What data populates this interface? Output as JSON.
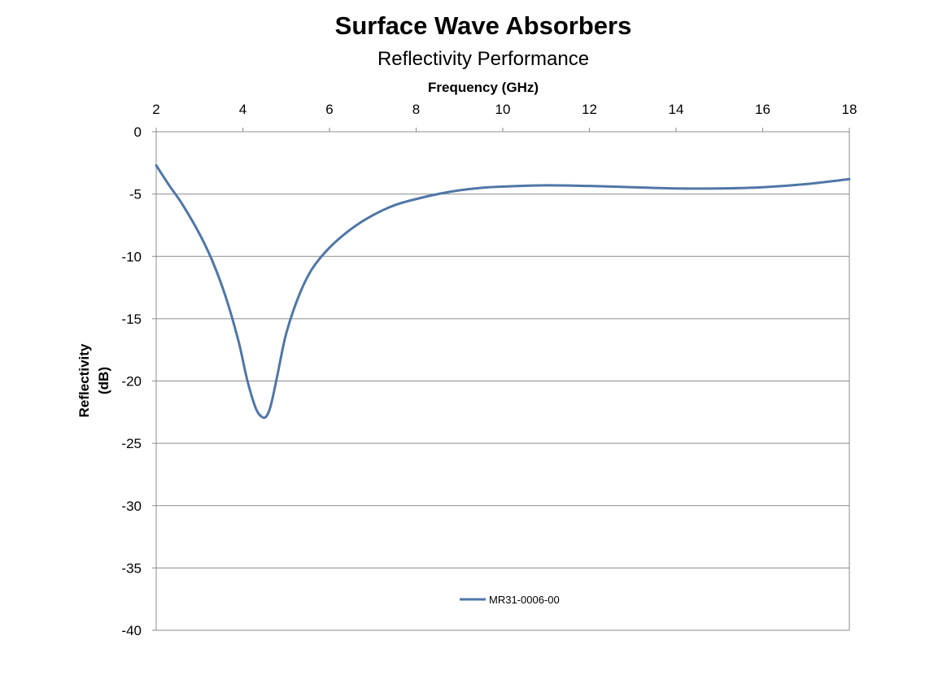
{
  "chart_data": {
    "type": "line",
    "title": "Surface Wave Absorbers",
    "subtitle": "Reflectivity Performance",
    "xlabel": "Frequency (GHz)",
    "ylabel_lines": [
      "Reflectivity",
      "(dB)"
    ],
    "xlim": [
      2,
      18
    ],
    "ylim": [
      -40,
      0
    ],
    "x_ticks": [
      2,
      4,
      6,
      8,
      10,
      12,
      14,
      16,
      18
    ],
    "y_ticks": [
      0,
      -5,
      -10,
      -15,
      -20,
      -25,
      -30,
      -35,
      -40
    ],
    "x_axis_position": "top",
    "grid": "horizontal",
    "legend_position": "bottom-center",
    "series": [
      {
        "name": "MR31-0006-00",
        "color": "#4f76a6",
        "x": [
          2,
          2.3,
          2.6,
          3.0,
          3.3,
          3.6,
          3.9,
          4.1,
          4.3,
          4.45,
          4.55,
          4.65,
          4.8,
          5.0,
          5.3,
          5.6,
          6.0,
          6.5,
          7.0,
          7.5,
          8.0,
          8.5,
          9.0,
          9.5,
          10.0,
          11.0,
          12.0,
          13.0,
          14.0,
          15.0,
          16.0,
          17.0,
          18.0
        ],
        "y": [
          -2.7,
          -4.3,
          -5.8,
          -8.2,
          -10.4,
          -13.2,
          -16.8,
          -19.9,
          -22.2,
          -22.9,
          -22.8,
          -21.9,
          -19.5,
          -16.2,
          -13.1,
          -11.0,
          -9.3,
          -7.8,
          -6.7,
          -5.9,
          -5.4,
          -5.0,
          -4.7,
          -4.5,
          -4.4,
          -4.3,
          -4.35,
          -4.45,
          -4.55,
          -4.55,
          -4.45,
          -4.2,
          -3.8
        ]
      }
    ]
  }
}
